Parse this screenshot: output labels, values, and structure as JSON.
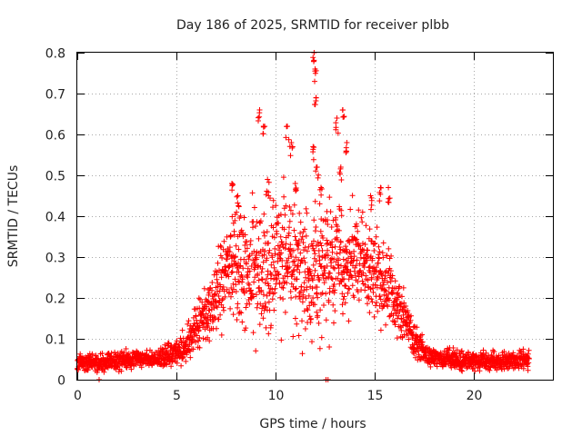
{
  "chart_data": {
    "type": "scatter",
    "title": "Day 186 of 2025, SRMTID for receiver plbb",
    "xlabel": "GPS time / hours",
    "ylabel": "SRMTID / TECUs",
    "xlim": [
      0,
      24
    ],
    "ylim": [
      0,
      0.8
    ],
    "xticks": [
      0,
      5,
      10,
      15,
      20
    ],
    "yticks": [
      0,
      0.1,
      0.2,
      0.3,
      0.4,
      0.5,
      0.6,
      0.7,
      0.8
    ],
    "xtick_labels": [
      "0",
      "5",
      "10",
      "15",
      "20"
    ],
    "ytick_labels": [
      "0",
      "0.1",
      "0.2",
      "0.3",
      "0.4",
      "0.5",
      "0.6",
      "0.7",
      "0.8"
    ],
    "grid": true,
    "legend": "none",
    "marker": "plus",
    "color": "#ff0000",
    "series": [
      {
        "name": "SRMTID",
        "profile_x": [
          0,
          1,
          2,
          3,
          4,
          5,
          5.5,
          6,
          6.5,
          7,
          7.5,
          8,
          8.5,
          9,
          9.5,
          10,
          10.5,
          11,
          11.5,
          12,
          12.5,
          13,
          13.5,
          14,
          14.5,
          15,
          15.5,
          16,
          16.5,
          17,
          17.5,
          18,
          19,
          20,
          21,
          22,
          23
        ],
        "profile_center": [
          0.045,
          0.04,
          0.045,
          0.05,
          0.05,
          0.065,
          0.08,
          0.12,
          0.16,
          0.2,
          0.26,
          0.3,
          0.27,
          0.25,
          0.26,
          0.3,
          0.3,
          0.28,
          0.26,
          0.25,
          0.27,
          0.28,
          0.29,
          0.29,
          0.27,
          0.26,
          0.24,
          0.2,
          0.15,
          0.1,
          0.07,
          0.055,
          0.05,
          0.045,
          0.045,
          0.05,
          0.05
        ],
        "profile_spread": [
          0.02,
          0.02,
          0.02,
          0.02,
          0.02,
          0.03,
          0.035,
          0.05,
          0.06,
          0.08,
          0.1,
          0.12,
          0.13,
          0.15,
          0.14,
          0.14,
          0.15,
          0.14,
          0.14,
          0.15,
          0.14,
          0.13,
          0.12,
          0.12,
          0.1,
          0.1,
          0.09,
          0.07,
          0.05,
          0.035,
          0.025,
          0.02,
          0.02,
          0.02,
          0.02,
          0.02,
          0.02
        ],
        "peaks": [
          {
            "x": 7.8,
            "y": 0.48
          },
          {
            "x": 8.1,
            "y": 0.45
          },
          {
            "x": 9.2,
            "y": 0.66
          },
          {
            "x": 9.4,
            "y": 0.62
          },
          {
            "x": 9.6,
            "y": 0.49
          },
          {
            "x": 10.6,
            "y": 0.62
          },
          {
            "x": 10.8,
            "y": 0.58
          },
          {
            "x": 11.95,
            "y": 0.8
          },
          {
            "x": 12.0,
            "y": 0.76
          },
          {
            "x": 12.05,
            "y": 0.69
          },
          {
            "x": 11.9,
            "y": 0.57
          },
          {
            "x": 12.1,
            "y": 0.52
          },
          {
            "x": 13.1,
            "y": 0.64
          },
          {
            "x": 13.4,
            "y": 0.66
          },
          {
            "x": 13.6,
            "y": 0.58
          },
          {
            "x": 13.3,
            "y": 0.52
          },
          {
            "x": 15.3,
            "y": 0.47
          },
          {
            "x": 15.7,
            "y": 0.47
          },
          {
            "x": 14.8,
            "y": 0.45
          },
          {
            "x": 11.0,
            "y": 0.48
          },
          {
            "x": 12.3,
            "y": 0.47
          }
        ],
        "lows": [
          {
            "x": 1.1,
            "y": 0.0
          },
          {
            "x": 12.55,
            "y": 0.0
          },
          {
            "x": 12.65,
            "y": 0.0
          }
        ],
        "x_end": 22.8,
        "n_points": 2300
      }
    ]
  }
}
